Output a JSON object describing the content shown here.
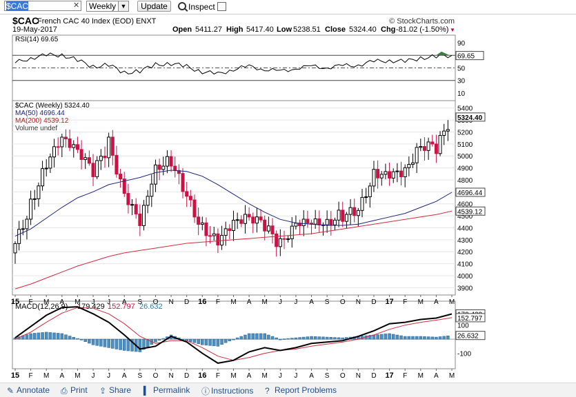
{
  "toolbar": {
    "symbol_value": "$CAC",
    "period_selected": "Weekly",
    "update_label": "Update",
    "inspect_label": "Inspect"
  },
  "chart_header": {
    "title": "$CAC French CAC 40 Index (EOD) ENXT",
    "symbol": "$CAC",
    "name": "French CAC 40 Index (EOD) ENXT",
    "watermark": "© StockCharts.com",
    "date": "19-May-2017",
    "open_label": "Open",
    "open": "5411.27",
    "high_label": "High",
    "high": "5417.40",
    "low_label": "Low",
    "low": "5238.51",
    "close_label": "Close",
    "close": "5324.40",
    "chg_label": "Chg",
    "chg": "-81.02 (-1.50%)",
    "chg_color": "#cc0033"
  },
  "rsi_panel": {
    "label": "RSI(14) 69.65",
    "current": "69.65",
    "ticks": [
      "90",
      "70",
      "50",
      "30",
      "10"
    ]
  },
  "price_panel": {
    "legend": [
      {
        "text": "$CAC (Weekly) 5324.40",
        "color": "#000000"
      },
      {
        "text": "MA(50) 4696.44",
        "color": "#1a237e"
      },
      {
        "text": "MA(200) 4539.12",
        "color": "#b71c1c"
      },
      {
        "text": "Volume undef",
        "color": "#333333"
      }
    ],
    "ticks": [
      "5400",
      "5300",
      "5200",
      "5100",
      "5000",
      "4900",
      "4800",
      "4700",
      "4600",
      "4500",
      "4400",
      "4300",
      "4200",
      "4100",
      "4000",
      "3900"
    ],
    "current_label": "5324.40",
    "ma50_label": "4696.44",
    "ma200_label": "4539.12"
  },
  "macd_panel": {
    "label_prefix": "MACD(12,26,9)",
    "macd_value": "179.429",
    "signal_value": "152.797",
    "hist_value": "26.632",
    "ticks": [
      "100",
      "-100"
    ],
    "value_box_1": "179.429",
    "value_box_2": "152.797",
    "value_box_3": "26.632"
  },
  "x_axis": {
    "labels": [
      "15",
      "F",
      "M",
      "A",
      "M",
      "J",
      "J",
      "A",
      "S",
      "O",
      "N",
      "D",
      "16",
      "F",
      "M",
      "A",
      "M",
      "J",
      "J",
      "A",
      "S",
      "O",
      "N",
      "D",
      "17",
      "F",
      "M",
      "A",
      "M"
    ]
  },
  "colors": {
    "up_candle": "#000000",
    "down_candle": "#cc1144",
    "ma50": "#1a237e",
    "ma200": "#d42a3a",
    "hist": "#4a90c4",
    "rsi_fill": "#3a7d44"
  },
  "footer": {
    "annotate": "Annotate",
    "print": "Print",
    "share": "Share",
    "permalink": "Permalink",
    "instructions": "Instructions",
    "report": "Report Problems"
  },
  "chart_data": [
    {
      "type": "line",
      "title": "RSI(14)",
      "ylim": [
        0,
        100
      ],
      "x": [
        "2015-01",
        "2015-02",
        "2015-03",
        "2015-04",
        "2015-05",
        "2015-06",
        "2015-07",
        "2015-08",
        "2015-09",
        "2015-10",
        "2015-11",
        "2015-12",
        "2016-01",
        "2016-02",
        "2016-03",
        "2016-04",
        "2016-05",
        "2016-06",
        "2016-07",
        "2016-08",
        "2016-09",
        "2016-10",
        "2016-11",
        "2016-12",
        "2017-01",
        "2017-02",
        "2017-03",
        "2017-04",
        "2017-05"
      ],
      "series": [
        {
          "name": "RSI(14)",
          "values": [
            58,
            66,
            70,
            71,
            62,
            52,
            55,
            42,
            45,
            55,
            57,
            52,
            44,
            40,
            48,
            52,
            48,
            44,
            50,
            52,
            51,
            53,
            55,
            60,
            62,
            60,
            66,
            68,
            70
          ]
        }
      ]
    },
    {
      "type": "bar",
      "title": "$CAC (Weekly)",
      "ylim": [
        3850,
        5450
      ],
      "x": [
        "2015-01",
        "2015-02",
        "2015-03",
        "2015-04",
        "2015-05",
        "2015-06",
        "2015-07",
        "2015-08",
        "2015-09",
        "2015-10",
        "2015-11",
        "2015-12",
        "2016-01",
        "2016-02",
        "2016-03",
        "2016-04",
        "2016-05",
        "2016-06",
        "2016-07",
        "2016-08",
        "2016-09",
        "2016-10",
        "2016-11",
        "2016-12",
        "2017-01",
        "2017-02",
        "2017-03",
        "2017-04",
        "2017-05"
      ],
      "series": [
        {
          "name": "Close",
          "values": [
            4250,
            4600,
            4950,
            5150,
            5050,
            4850,
            5100,
            4700,
            4450,
            4900,
            4950,
            4640,
            4400,
            4300,
            4450,
            4500,
            4400,
            4250,
            4450,
            4450,
            4450,
            4500,
            4520,
            4850,
            4850,
            4880,
            5100,
            5050,
            5324
          ]
        },
        {
          "name": "MA(50)",
          "values": [
            4330,
            4390,
            4480,
            4570,
            4650,
            4700,
            4760,
            4790,
            4820,
            4860,
            4880,
            4870,
            4830,
            4760,
            4680,
            4600,
            4530,
            4470,
            4440,
            4430,
            4420,
            4420,
            4430,
            4460,
            4490,
            4520,
            4570,
            4620,
            4696
          ]
        },
        {
          "name": "MA(200)",
          "values": [
            3890,
            3930,
            3980,
            4030,
            4080,
            4120,
            4160,
            4190,
            4210,
            4230,
            4250,
            4270,
            4280,
            4290,
            4300,
            4310,
            4320,
            4330,
            4340,
            4350,
            4370,
            4390,
            4410,
            4430,
            4450,
            4470,
            4490,
            4510,
            4539
          ]
        }
      ]
    },
    {
      "type": "line",
      "title": "MACD(12,26,9)",
      "ylim": [
        -200,
        260
      ],
      "x": [
        "2015-01",
        "2015-02",
        "2015-03",
        "2015-04",
        "2015-05",
        "2015-06",
        "2015-07",
        "2015-08",
        "2015-09",
        "2015-10",
        "2015-11",
        "2015-12",
        "2016-01",
        "2016-02",
        "2016-03",
        "2016-04",
        "2016-05",
        "2016-06",
        "2016-07",
        "2016-08",
        "2016-09",
        "2016-10",
        "2016-11",
        "2016-12",
        "2017-01",
        "2017-02",
        "2017-03",
        "2017-04",
        "2017-05"
      ],
      "series": [
        {
          "name": "MACD",
          "values": [
            10,
            90,
            170,
            225,
            230,
            180,
            120,
            30,
            -70,
            -50,
            20,
            -20,
            -100,
            -170,
            -150,
            -90,
            -60,
            -80,
            -60,
            -30,
            -20,
            -10,
            20,
            60,
            110,
            120,
            140,
            150,
            179.429
          ]
        },
        {
          "name": "Signal",
          "values": [
            0,
            50,
            120,
            185,
            225,
            220,
            180,
            110,
            20,
            -30,
            -10,
            -10,
            -60,
            -120,
            -150,
            -130,
            -100,
            -80,
            -70,
            -50,
            -35,
            -20,
            0,
            30,
            70,
            100,
            120,
            135,
            152.797
          ]
        },
        {
          "name": "Histogram",
          "values": [
            10,
            40,
            50,
            40,
            5,
            -40,
            -60,
            -80,
            -90,
            -20,
            30,
            -10,
            -40,
            -50,
            0,
            40,
            40,
            0,
            10,
            20,
            15,
            10,
            20,
            30,
            40,
            20,
            20,
            15,
            26.632
          ]
        }
      ]
    }
  ]
}
